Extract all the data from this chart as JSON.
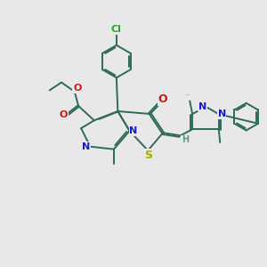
{
  "bg_color": "#e8e8e8",
  "bond_color": "#2d6b5a",
  "bond_width": 1.4,
  "atom_colors": {
    "N": "#1a1acc",
    "O": "#cc1a1a",
    "S": "#aaaa00",
    "Cl": "#22aa22",
    "H": "#5a9a8a",
    "C": "#2d6b5a"
  }
}
